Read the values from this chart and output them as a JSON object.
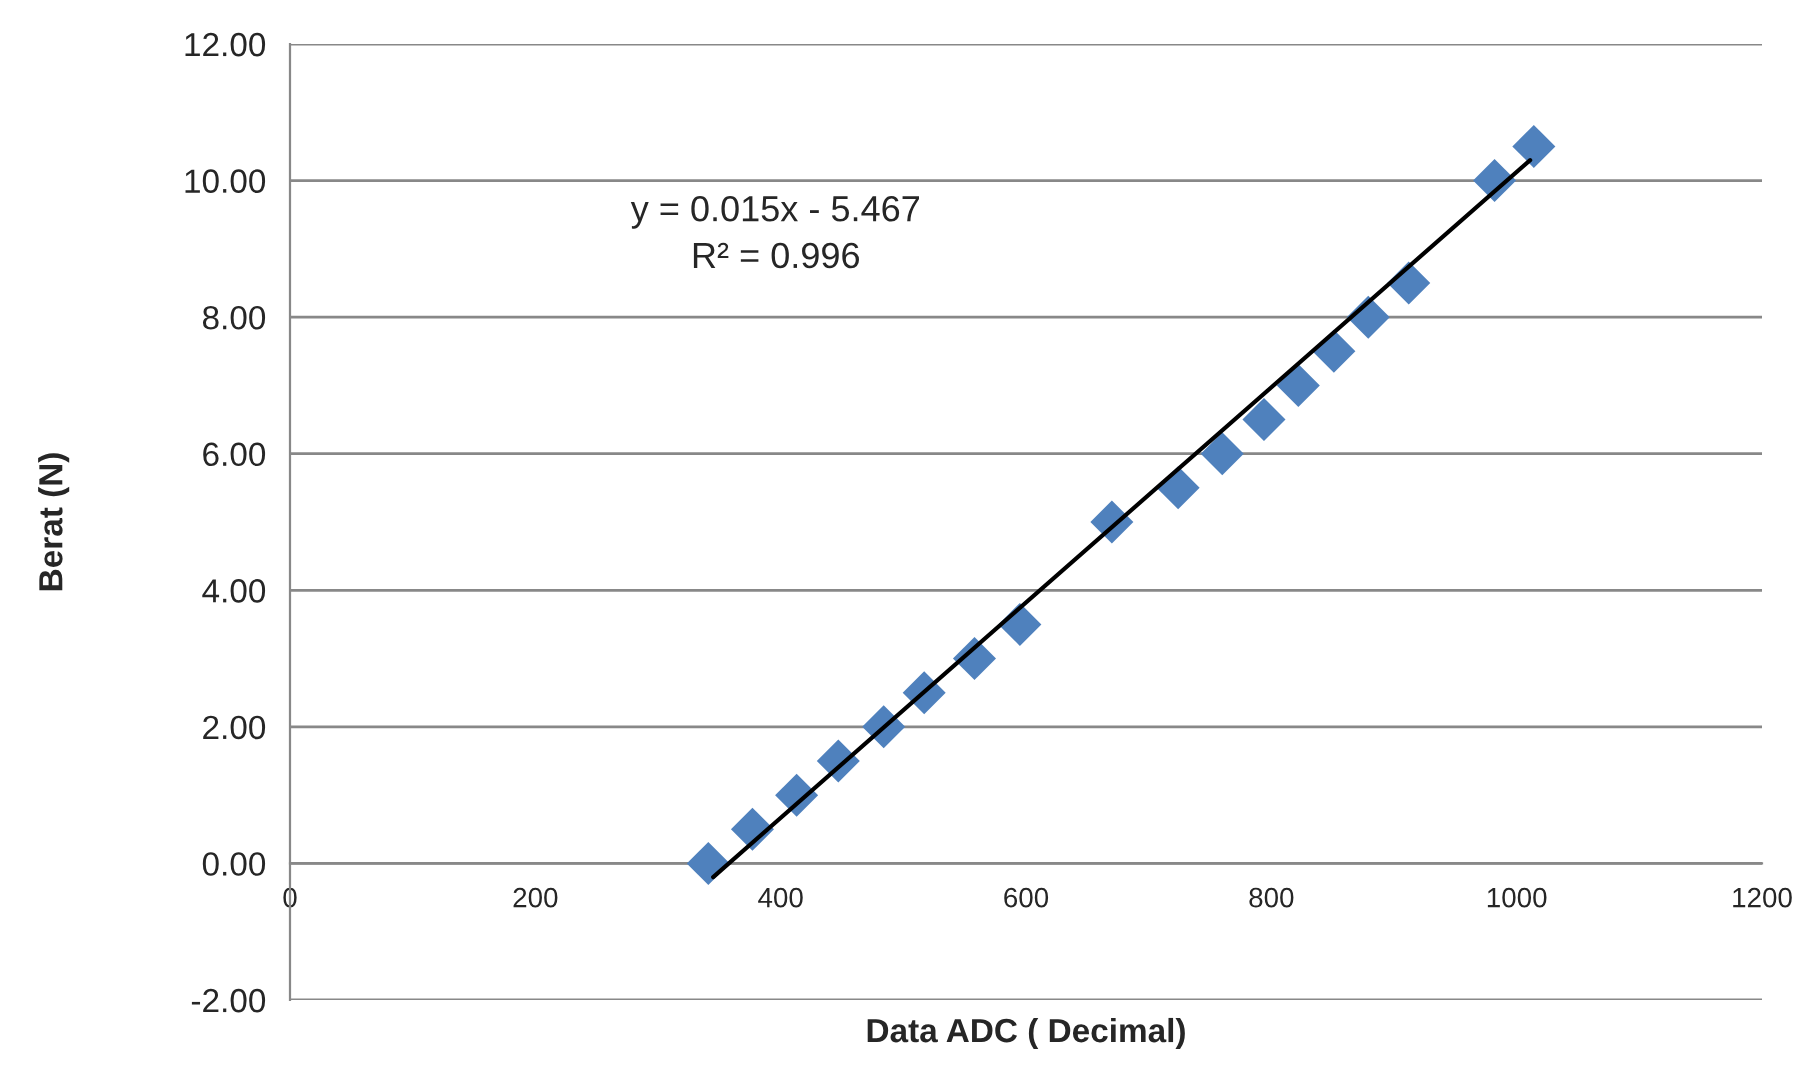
{
  "chart_data": {
    "type": "scatter",
    "xlabel": "Data ADC ( Decimal)",
    "ylabel": "Berat (N)",
    "x": [
      341,
      377,
      413,
      447,
      484,
      517,
      558,
      595,
      670,
      724,
      760,
      794,
      822,
      851,
      879,
      912,
      982,
      1014
    ],
    "series": [
      {
        "color": "#4f81bd",
        "marker": "diamond",
        "values": [
          0,
          0.5,
          1.0,
          1.5,
          2.0,
          2.5,
          3.0,
          3.5,
          5.0,
          5.5,
          6.0,
          6.5,
          7.0,
          7.5,
          8.0,
          8.5,
          10.0,
          10.5
        ]
      },
      {
        "type": "line",
        "color": "#000000",
        "marker": "none",
        "line_style": "solid",
        "x": [
          345,
          1011
        ],
        "values": [
          -0.2,
          10.3
        ]
      }
    ],
    "annotations": [
      "y = 0.015x - 5.467\nR² = 0.996"
    ],
    "xlim": [
      0,
      1200
    ],
    "xticks": [
      0,
      200,
      400,
      600,
      800,
      1000,
      1200
    ],
    "ylim": [
      -2,
      12
    ],
    "yticks": [
      {
        "value": -2,
        "label": "-2.00"
      },
      {
        "value": 0,
        "label": "0.00"
      },
      {
        "value": 2,
        "label": "2.00"
      },
      {
        "value": 4,
        "label": "4.00"
      },
      {
        "value": 6,
        "label": "6.00"
      },
      {
        "value": 8,
        "label": "8.00"
      },
      {
        "value": 10,
        "label": "10.00"
      },
      {
        "value": 12,
        "label": "12.00"
      }
    ],
    "grid": "y",
    "legend": false
  }
}
